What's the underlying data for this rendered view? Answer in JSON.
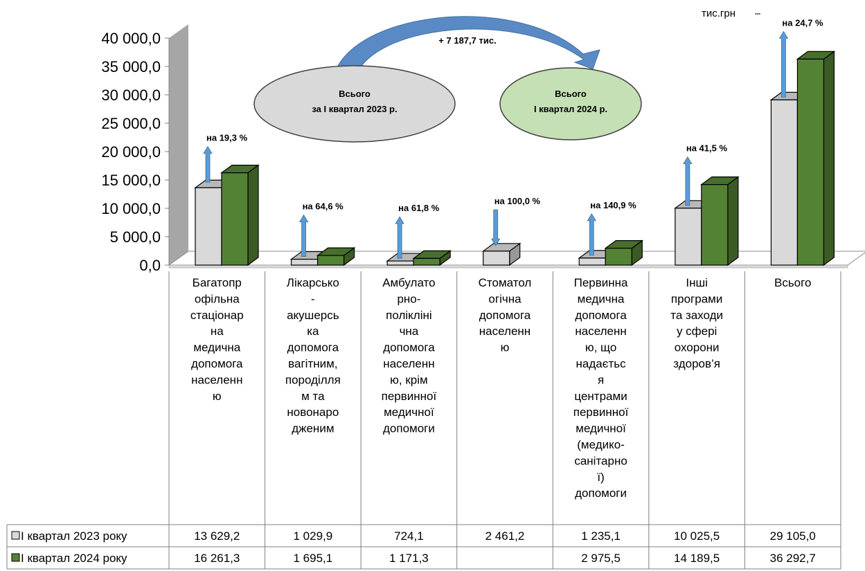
{
  "chart_data": {
    "type": "bar",
    "unit_label": "тис.грн",
    "categories": [
      "Багатопр\nофільна\nстаціонар\nна\nмедична\nдопомога\nнаселенн\nю",
      "Лікарсько\n-\nакушерсь\nка\nдопомога\nвагітним,\nпороділля\nм та\nновонаро\nдженим",
      "Амбулато\nрно-\nполікліні\nчна\nдопомога\nнаселенн\nю, крім\nпервинної\nмедичної\nдопомоги",
      "Стоматол\nогічна\nдопомога\nнаселенн\nю",
      "Первинна\nмедична\nдопомога\nнаселенн\nю, що\nнадаєтьс\nя\nцентрами\nпервинної\nмедичної\n(медико-\nсанітарно\nї)\nдопомоги",
      "Інші\nпрограми\nта заходи\nу сфері\nохорони\nздоров’я",
      "Всього"
    ],
    "series": [
      {
        "name": "І квартал 2023 року",
        "color": "#d9d9d9",
        "values": [
          13629.2,
          1029.9,
          724.1,
          2461.2,
          1235.1,
          10025.5,
          29105.0
        ],
        "table_values": [
          "13 629,2",
          "1 029,9",
          "724,1",
          "2 461,2",
          "1 235,1",
          "10 025,5",
          "29 105,0"
        ]
      },
      {
        "name": "І квартал 2024 року",
        "color": "#548235",
        "values": [
          16261.3,
          1695.1,
          1171.3,
          null,
          2975.5,
          14189.5,
          36292.7
        ],
        "table_values": [
          "16 261,3",
          "1 695,1",
          "1 171,3",
          "",
          "2 975,5",
          "14 189,5",
          "36 292,7"
        ]
      }
    ],
    "yticks": [
      "0,0",
      "5 000,0",
      "10 000,0",
      "15 000,0",
      "20 000,0",
      "25 000,0",
      "30 000,0",
      "35 000,0",
      "40 000,0"
    ],
    "ylim": [
      0,
      40000
    ],
    "change_annotations": [
      {
        "text": "на 19,3 %",
        "direction": "up"
      },
      {
        "text": "на 64,6 %",
        "direction": "up"
      },
      {
        "text": "на 61,8 %",
        "direction": "up"
      },
      {
        "text": "на 100,0 %",
        "direction": "down"
      },
      {
        "text": "на 140,9 %",
        "direction": "up"
      },
      {
        "text": "на 41,5 %",
        "direction": "up"
      },
      {
        "text": "на 24,7 %",
        "direction": "up"
      }
    ],
    "ellipse_2023": "Всього\nза І квартал 2023 р.",
    "ellipse_2024": "Всього\nІ квартал 2024 р.",
    "curved_arrow_text": "+ 7 187,7 тис.",
    "legend_placement": "data-table"
  }
}
